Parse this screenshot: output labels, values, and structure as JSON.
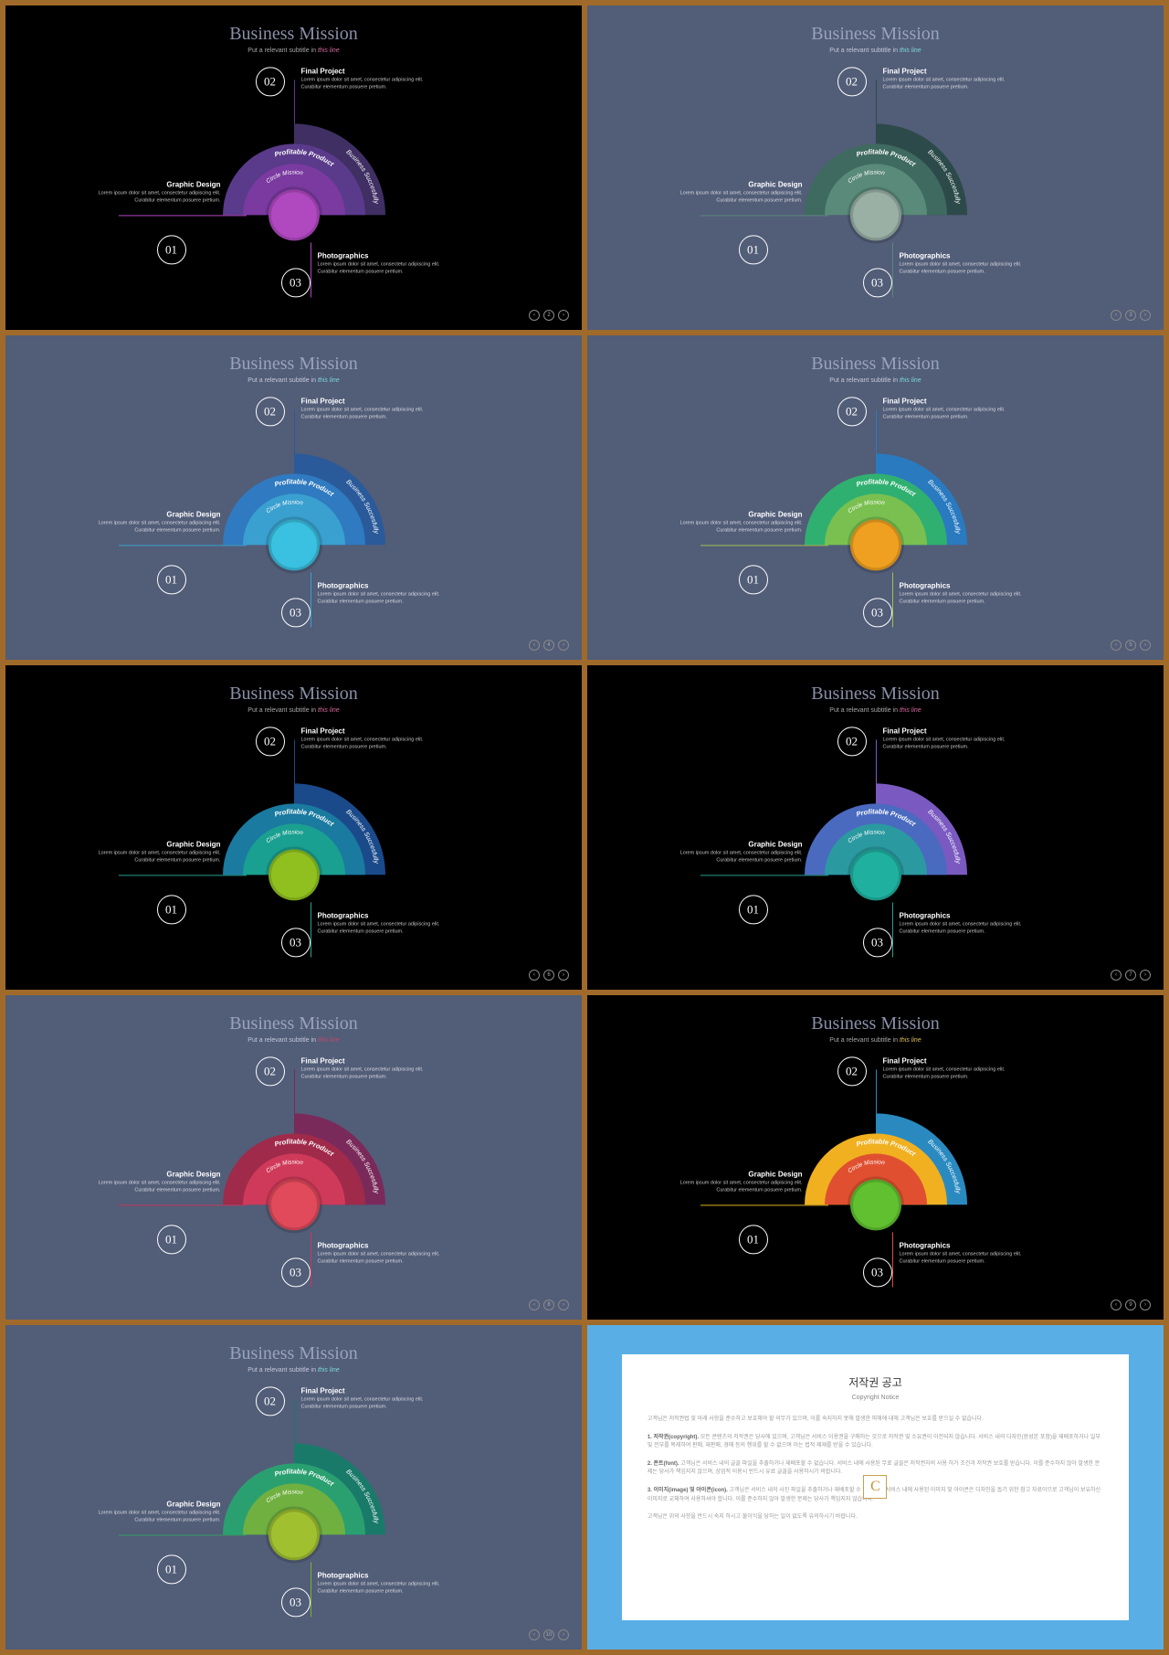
{
  "common": {
    "title": "Business Mission",
    "subtitle_pre": "Put a relevant subtitle in ",
    "subtitle_accent": "this line",
    "item1_title": "Graphic Design",
    "item2_title": "Final Project",
    "item3_title": "Photographics",
    "item_body": "Lorem ipsum dolor sit amet, consectetur adipiscing elit. Curabitur elementum posuere pretium.",
    "arc_outer": "Business Succesfully",
    "arc_mid": "Profitable Product",
    "arc_inner": "Circle Mission",
    "num1": "01",
    "num2": "02",
    "num3": "03"
  },
  "slides": [
    {
      "bg": "#000000",
      "title_color": "#8a8fa8",
      "sub_color": "#a8a8a8",
      "accent_color": "#d96aa0",
      "leader1": "#b048c0",
      "leader2": "#5a3a8a",
      "leader3": "#b048c0",
      "arc3": "#3f2f63",
      "arc2": "#5a3a8a",
      "arc1": "#7a3aa0",
      "core": "#b048c0",
      "text_color": "#ffffff",
      "page": "2"
    },
    {
      "bg": "#525d78",
      "title_color": "#9aa2bb",
      "sub_color": "#c4c9d9",
      "accent_color": "#7adada",
      "leader1": "#5a8a7a",
      "leader2": "#2d4a4a",
      "leader3": "#5a8a7a",
      "arc3": "#2d4a4a",
      "arc2": "#3f6a5f",
      "arc1": "#5a8a7a",
      "core": "#9ab0a5",
      "text_color": "#ffffff",
      "page": "3"
    },
    {
      "bg": "#525d78",
      "title_color": "#9aa2bb",
      "sub_color": "#c4c9d9",
      "accent_color": "#7adada",
      "leader1": "#3aa0d0",
      "leader2": "#2a5a9a",
      "leader3": "#3aa0d0",
      "arc3": "#2a5a9a",
      "arc2": "#2f7ac0",
      "arc1": "#3aa0d0",
      "core": "#3ac0e0",
      "text_color": "#ffffff",
      "page": "4"
    },
    {
      "bg": "#525d78",
      "title_color": "#9aa2bb",
      "sub_color": "#c4c9d9",
      "accent_color": "#7adada",
      "leader1": "#a0c050",
      "leader2": "#2a7ac0",
      "leader3": "#a0c050",
      "arc3": "#2a7ac0",
      "arc2": "#30b070",
      "arc1": "#7ac050",
      "core": "#f0a020",
      "text_color": "#ffffff",
      "page": "5"
    },
    {
      "bg": "#000000",
      "title_color": "#8a8fa8",
      "sub_color": "#a8a8a8",
      "accent_color": "#d96aa0",
      "leader1": "#2aa090",
      "leader2": "#1a4a8a",
      "leader3": "#2aa090",
      "arc3": "#1a4a8a",
      "arc2": "#1a7aa0",
      "arc1": "#1aa090",
      "core": "#90c020",
      "text_color": "#ffffff",
      "page": "6"
    },
    {
      "bg": "#000000",
      "title_color": "#8a8fa8",
      "sub_color": "#a8a8a8",
      "accent_color": "#d96aa0",
      "leader1": "#2aa090",
      "leader2": "#7a5ac0",
      "leader3": "#2aa090",
      "arc3": "#7a5ac0",
      "arc2": "#4a6ac0",
      "arc1": "#2a9aa0",
      "core": "#20b0a0",
      "text_color": "#ffffff",
      "page": "7"
    },
    {
      "bg": "#525d78",
      "title_color": "#9aa2bb",
      "sub_color": "#c4c9d9",
      "accent_color": "#c04a6a",
      "leader1": "#c03a5a",
      "leader2": "#7a2a5a",
      "leader3": "#c03a5a",
      "arc3": "#7a2a5a",
      "arc2": "#a02a4a",
      "arc1": "#d03a5a",
      "core": "#e04a5a",
      "text_color": "#ffffff",
      "page": "8"
    },
    {
      "bg": "#000000",
      "title_color": "#8a8fa8",
      "sub_color": "#a8a8a8",
      "accent_color": "#e0c060",
      "leader1": "#e0b020",
      "leader2": "#2a8ac0",
      "leader3": "#e05030",
      "arc3": "#2a8ac0",
      "arc2": "#f0b020",
      "arc1": "#e05030",
      "core": "#60c030",
      "text_color": "#ffffff",
      "page": "9"
    },
    {
      "bg": "#525d78",
      "title_color": "#9aa2bb",
      "sub_color": "#c4c9d9",
      "accent_color": "#7adada",
      "leader1": "#30a060",
      "leader2": "#1a7a6a",
      "leader3": "#80b030",
      "arc3": "#1a7a6a",
      "arc2": "#2aa070",
      "arc1": "#70b040",
      "core": "#a0c030",
      "text_color": "#ffffff",
      "page": "10"
    }
  ],
  "copyright": {
    "title": "저작권 공고",
    "subtitle": "Copyright Notice",
    "p_intro": "고객님은 저작권법 및 아래 사항을 준수하고 보호해야 할 의무가 있으며, 이를 숙지하지 못해 발생한 피해에 대해 고객님은 보호를 받으실 수 없습니다.",
    "p1_head": "1. 저작권(copyright).",
    "p1_body": " 모든 콘텐츠의 저작권은 당사에 있으며, 고객님은 서비스 이용권을 구매하는 것으로 저작권 및 소유권이 이전되지 않습니다. 서비스 내의 디자인(완성본 포함)을 재배포하거나 일부 및 전부를 복제하여 판매, 재판매, 경매 등의 행위를 할 수 없으며 이는 법적 제재를 받을 수 있습니다.",
    "p2_head": "2. 폰트(font).",
    "p2_body": " 고객님은 서비스 내의 글꼴 파일을 추출하거나 재배포할 수 없습니다. 서비스 내에 사용된 무료 글꼴은 저작권자의 사용 허가 조건과 저작권 보호를 받습니다. 이를 준수하지 않아 발생한 문제는 당사가 책임지지 않으며, 상업적 이용시 반드시 유료 글꼴을 사용하시기 바랍니다.",
    "p3_head": "3. 이미지(image) 및 아이콘(icon).",
    "p3_body": " 고객님은 서비스 내의 사진 파일을 추출하거나 재배포할 수 없습니다. 서비스 내에 사용된 이미지 및 아이콘은 디자인을 돕기 위한 참고 자료이므로 고객님이 보유하신 이미지로 교체하여 사용하셔야 합니다. 이를 준수하지 않아 발생한 문제는 당사가 책임지지 않습니다.",
    "p_outro": "고객님은 위의 사항을 반드시 숙지 하시고 불이익을 당하는 일이 없도록 유의하시기 바랍니다.",
    "logo": "C"
  }
}
